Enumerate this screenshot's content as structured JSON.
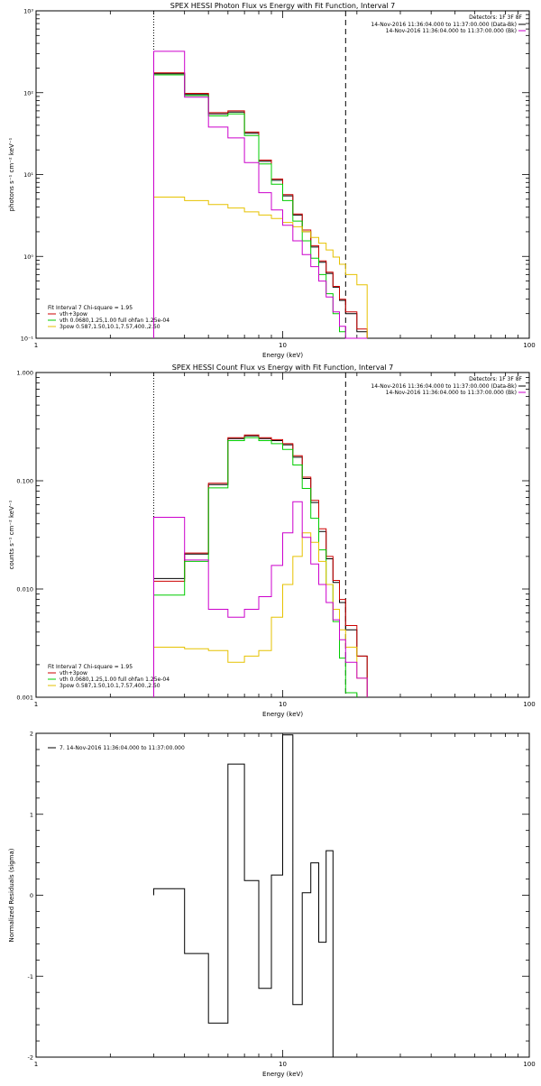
{
  "chart_data": [
    {
      "type": "line",
      "title": "SPEX HESSI Photon Flux vs Energy with Fit Function, Interval 7",
      "xlabel": "Energy (keV)",
      "ylabel": "photons s⁻¹ cm⁻² keV⁻¹",
      "xscale": "log",
      "yscale": "log",
      "xlim": [
        1,
        100
      ],
      "ylim": [
        0.1,
        1000
      ],
      "xticks": [
        1,
        10,
        100
      ],
      "xtick_labels": [
        "1",
        "10",
        "100"
      ],
      "yticks": [
        0.1,
        1,
        10,
        100,
        1000
      ],
      "ytick_labels": [
        "10⁻¹",
        "10⁰",
        "10¹",
        "10²",
        "10³"
      ],
      "vlines_dotted": [
        3
      ],
      "vlines_dashed": [
        18
      ],
      "header": {
        "detectors": "Detectors: 1F 3F 8F",
        "line1": "14-Nov-2016 11:36:04.000 to 11:37:00.000 (Data-Bk)",
        "line2": "14-Nov-2016 11:36:04.000 to 11:37:00.000 (Bk)"
      },
      "legend": {
        "heading": "Fit Interval  7   Chi-square = 1.95",
        "entries": [
          {
            "label": "vth+3pow",
            "color": "#cc0000"
          },
          {
            "label": "vth 0.0680,1.25,1.00  full ohfan 1.25e-04",
            "color": "#00cc00"
          },
          {
            "label": "3pow 0.587,1.50,10.1,7.57,400.,2.50",
            "color": "#e6c200"
          }
        ]
      },
      "edges": [
        3,
        4,
        5,
        6,
        7,
        8,
        9,
        10,
        11,
        12,
        13,
        14,
        15,
        16,
        17,
        18,
        20,
        22
      ],
      "series": [
        {
          "name": "Data-Bk",
          "color": "#000000",
          "values": [
            170,
            95,
            55,
            58,
            32,
            14.5,
            8.5,
            5.5,
            3.2,
            2.0,
            1.3,
            0.85,
            0.62,
            0.42,
            0.29,
            0.2,
            0.12
          ]
        },
        {
          "name": "vth+3pow",
          "color": "#cc0000",
          "values": [
            175,
            98,
            57,
            60,
            33,
            15,
            8.8,
            5.7,
            3.3,
            2.1,
            1.35,
            0.88,
            0.64,
            0.43,
            0.3,
            0.21,
            0.13
          ]
        },
        {
          "name": "vth",
          "color": "#00cc00",
          "values": [
            165,
            92,
            52,
            55,
            30,
            13.5,
            7.6,
            4.8,
            2.7,
            1.55,
            0.95,
            0.6,
            0.35,
            0.2,
            0.12,
            null,
            null
          ]
        },
        {
          "name": "3pow",
          "color": "#e6c200",
          "values": [
            5.3,
            4.8,
            4.3,
            3.9,
            3.5,
            3.2,
            2.9,
            2.6,
            2.3,
            2.0,
            1.7,
            1.45,
            1.2,
            0.98,
            0.8,
            0.6,
            0.45
          ]
        },
        {
          "name": "Bk",
          "color": "#cc00cc",
          "values": [
            320,
            88,
            38,
            28,
            14,
            6,
            3.7,
            2.4,
            1.55,
            1.05,
            0.75,
            0.5,
            0.32,
            0.21,
            0.14,
            0.09,
            0.07
          ]
        }
      ]
    },
    {
      "type": "line",
      "title": "SPEX HESSI Count Flux vs Energy with Fit Function, Interval 7",
      "xlabel": "Energy (keV)",
      "ylabel": "counts s⁻¹ cm⁻² keV⁻¹",
      "xscale": "log",
      "yscale": "log",
      "xlim": [
        1,
        100
      ],
      "ylim": [
        0.001,
        1
      ],
      "xticks": [
        1,
        10,
        100
      ],
      "xtick_labels": [
        "1",
        "10",
        "100"
      ],
      "yticks": [
        0.001,
        0.01,
        0.1,
        1
      ],
      "ytick_labels": [
        "0.001",
        "0.010",
        "0.100",
        "1.000"
      ],
      "vlines_dotted": [
        3
      ],
      "vlines_dashed": [
        18
      ],
      "header": {
        "detectors": "Detectors: 1F 3F 8F",
        "line1": "14-Nov-2016 11:36:04.000 to 11:37:00.000 (Data-Bk)",
        "line2": "14-Nov-2016 11:36:04.000 to 11:37:00.000 (Bk)"
      },
      "legend": {
        "heading": "Fit Interval  7   Chi-square = 1.95",
        "entries": [
          {
            "label": "vth+3pow",
            "color": "#cc0000"
          },
          {
            "label": "vth 0.0680,1.25,1.00  full ohfan 1.25e-04",
            "color": "#00cc00"
          },
          {
            "label": "3pow 0.587,1.50,10.1,7.57,400.,2.50",
            "color": "#e6c200"
          }
        ]
      },
      "edges": [
        3,
        4,
        5,
        6,
        7,
        8,
        9,
        10,
        11,
        12,
        13,
        14,
        15,
        16,
        17,
        18,
        20,
        22
      ],
      "series": [
        {
          "name": "Data-Bk",
          "color": "#000000",
          "values": [
            0.0125,
            0.021,
            0.092,
            0.245,
            0.26,
            0.245,
            0.235,
            0.215,
            0.165,
            0.105,
            0.063,
            0.034,
            0.019,
            0.0115,
            0.0075,
            0.0042,
            0.0024
          ]
        },
        {
          "name": "vth+3pow",
          "color": "#cc0000",
          "values": [
            0.0118,
            0.0215,
            0.095,
            0.25,
            0.265,
            0.25,
            0.24,
            0.22,
            0.17,
            0.108,
            0.066,
            0.036,
            0.02,
            0.012,
            0.008,
            0.0046,
            0.0024
          ]
        },
        {
          "name": "vth",
          "color": "#00cc00",
          "values": [
            0.0088,
            0.018,
            0.086,
            0.235,
            0.25,
            0.235,
            0.22,
            0.195,
            0.14,
            0.085,
            0.045,
            0.023,
            0.011,
            0.005,
            0.0023,
            0.0011,
            null
          ]
        },
        {
          "name": "3pow",
          "color": "#e6c200",
          "values": [
            0.0029,
            0.0028,
            0.0027,
            0.0021,
            0.0024,
            0.0027,
            0.0055,
            0.011,
            0.02,
            0.033,
            0.027,
            0.018,
            0.011,
            0.0065,
            0.0042,
            0.0029,
            0.0015
          ]
        },
        {
          "name": "Bk",
          "color": "#cc00cc",
          "values": [
            0.046,
            0.0185,
            0.0065,
            0.0055,
            0.0065,
            0.0085,
            0.0165,
            0.033,
            0.064,
            0.03,
            0.017,
            0.011,
            0.0075,
            0.0052,
            0.0034,
            0.0021,
            0.0015
          ]
        }
      ]
    },
    {
      "type": "line",
      "title": "",
      "xlabel": "Energy (keV)",
      "ylabel": "Normalized Residuals (sigma)",
      "xscale": "log",
      "yscale": "linear",
      "xlim": [
        1,
        100
      ],
      "ylim": [
        -2,
        2
      ],
      "xticks": [
        1,
        10,
        100
      ],
      "xtick_labels": [
        "1",
        "10",
        "100"
      ],
      "yticks": [
        -2,
        -1,
        0,
        1,
        2
      ],
      "ytick_labels": [
        "-2",
        "-1",
        "0",
        "1",
        "2"
      ],
      "legend": {
        "entries": [
          {
            "label": "7. 14-Nov-2016 11:36:04.000 to 11:37:00.000",
            "color": "#000000"
          }
        ]
      },
      "edges": [
        3,
        4,
        5,
        6,
        7,
        8,
        9,
        10,
        11,
        12,
        13,
        14,
        15,
        16,
        17,
        18
      ],
      "series": [
        {
          "name": "",
          "color": "#000000",
          "values": [
            0.08,
            -0.72,
            -1.58,
            1.62,
            0.18,
            -1.15,
            0.25,
            1.98,
            -1.35,
            0.03,
            0.4,
            -0.58,
            0.55,
            null,
            null
          ]
        }
      ]
    }
  ]
}
